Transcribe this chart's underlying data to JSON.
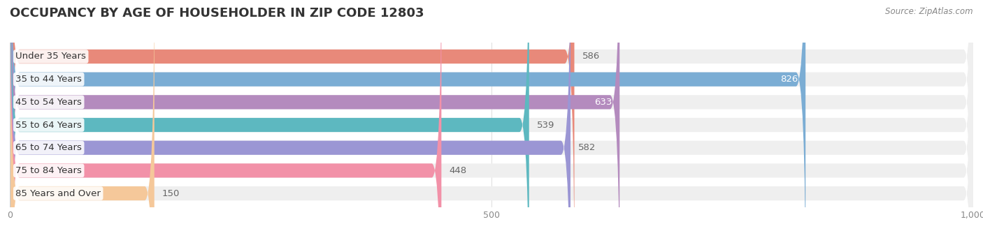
{
  "title": "OCCUPANCY BY AGE OF HOUSEHOLDER IN ZIP CODE 12803",
  "source": "Source: ZipAtlas.com",
  "categories": [
    "Under 35 Years",
    "35 to 44 Years",
    "45 to 54 Years",
    "55 to 64 Years",
    "65 to 74 Years",
    "75 to 84 Years",
    "85 Years and Over"
  ],
  "values": [
    586,
    826,
    633,
    539,
    582,
    448,
    150
  ],
  "bar_colors": [
    "#E8897A",
    "#7BADD4",
    "#B48BBE",
    "#5DB8C0",
    "#9B96D4",
    "#F291A8",
    "#F5C89A"
  ],
  "bar_bg_color": "#EFEFEF",
  "xlim": [
    0,
    1000
  ],
  "xticks": [
    0,
    500,
    1000
  ],
  "xtick_labels": [
    "0",
    "500",
    "1,000"
  ],
  "title_fontsize": 13,
  "label_fontsize": 9.5,
  "value_fontsize": 9.5,
  "background_color": "#FFFFFF",
  "bar_height": 0.62,
  "inside_threshold": 600
}
